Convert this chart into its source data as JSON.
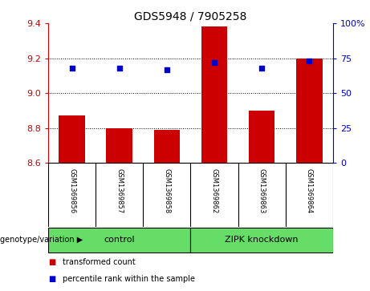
{
  "title": "GDS5948 / 7905258",
  "samples": [
    "GSM1369856",
    "GSM1369857",
    "GSM1369858",
    "GSM1369862",
    "GSM1369863",
    "GSM1369864"
  ],
  "bar_values": [
    8.87,
    8.8,
    8.79,
    9.38,
    8.9,
    9.2
  ],
  "percentile_values": [
    68,
    68,
    67,
    72,
    68,
    73
  ],
  "ylim_left": [
    8.6,
    9.4
  ],
  "ylim_right": [
    0,
    100
  ],
  "yticks_left": [
    8.6,
    8.8,
    9.0,
    9.2,
    9.4
  ],
  "yticks_right": [
    0,
    25,
    50,
    75,
    100
  ],
  "ytick_labels_right": [
    "0",
    "25",
    "50",
    "75",
    "100%"
  ],
  "bar_color": "#cc0000",
  "dot_color": "#0000cc",
  "bar_bottom": 8.6,
  "grid_vals": [
    8.8,
    9.0,
    9.2
  ],
  "groups": [
    {
      "label": "control",
      "start": 0,
      "end": 3,
      "color": "#66dd66"
    },
    {
      "label": "ZIPK knockdown",
      "start": 3,
      "end": 6,
      "color": "#66dd66"
    }
  ],
  "legend_items": [
    {
      "color": "#cc0000",
      "label": "transformed count"
    },
    {
      "color": "#0000cc",
      "label": "percentile rank within the sample"
    }
  ],
  "label_area_bg": "#c8c8c8",
  "fig_bg": "#ffffff",
  "title_fontsize": 10,
  "tick_fontsize": 8,
  "sample_fontsize": 6,
  "group_fontsize": 8,
  "legend_fontsize": 7
}
